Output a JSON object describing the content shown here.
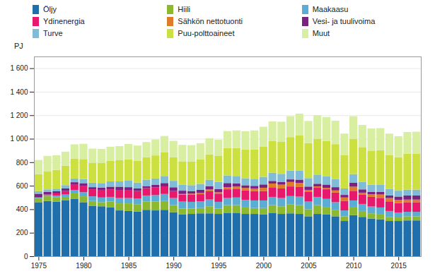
{
  "chart_data": {
    "type": "bar",
    "stacked": true,
    "grid": true,
    "legend": "top",
    "ylabel": "PJ",
    "x": [
      1975,
      1976,
      1977,
      1978,
      1979,
      1980,
      1981,
      1982,
      1983,
      1984,
      1985,
      1986,
      1987,
      1988,
      1989,
      1990,
      1991,
      1992,
      1993,
      1994,
      1995,
      1996,
      1997,
      1998,
      1999,
      2000,
      2001,
      2002,
      2003,
      2004,
      2005,
      2006,
      2007,
      2008,
      2009,
      2010,
      2011,
      2012,
      2013,
      2014,
      2015,
      2016,
      2017
    ],
    "xlim": [
      1974.5,
      2017.5
    ],
    "xticks": [
      1975,
      1980,
      1985,
      1990,
      1995,
      2000,
      2005,
      2010,
      2015
    ],
    "ylim": [
      0,
      1700
    ],
    "yticks": [
      0,
      200,
      400,
      600,
      800,
      {
        "value": 1000,
        "label": "1 000"
      },
      {
        "value": 1200,
        "label": "1 200"
      },
      {
        "value": 1400,
        "label": "1 400"
      },
      {
        "value": 1600,
        "label": "1 600"
      }
    ],
    "series": [
      {
        "name": "Öljy",
        "color": "#1f6fad",
        "values": [
          460,
          470,
          465,
          475,
          490,
          460,
          430,
          425,
          415,
          390,
          385,
          380,
          395,
          390,
          395,
          375,
          355,
          360,
          365,
          365,
          360,
          370,
          370,
          360,
          360,
          355,
          370,
          360,
          365,
          360,
          340,
          360,
          355,
          340,
          300,
          350,
          335,
          320,
          315,
          300,
          300,
          305,
          305
        ]
      },
      {
        "name": "Hiili",
        "color": "#8db92e",
        "values": [
          35,
          40,
          35,
          30,
          45,
          50,
          40,
          35,
          50,
          60,
          65,
          60,
          70,
          75,
          75,
          60,
          50,
          45,
          45,
          60,
          45,
          65,
          65,
          55,
          50,
          55,
          65,
          65,
          75,
          75,
          60,
          75,
          65,
          55,
          40,
          65,
          50,
          45,
          45,
          35,
          30,
          35,
          35
        ]
      },
      {
        "name": "Maakaasu",
        "color": "#5badd4",
        "values": [
          5,
          10,
          15,
          20,
          28,
          35,
          40,
          40,
          40,
          45,
          45,
          50,
          52,
          55,
          60,
          60,
          60,
          58,
          58,
          58,
          58,
          60,
          65,
          65,
          65,
          65,
          70,
          70,
          72,
          72,
          65,
          70,
          68,
          65,
          50,
          60,
          60,
          58,
          55,
          50,
          40,
          38,
          38
        ]
      },
      {
        "name": "Ydinenergia",
        "color": "#e8186d",
        "values": [
          0,
          5,
          20,
          30,
          45,
          55,
          60,
          65,
          65,
          65,
          65,
          65,
          62,
          65,
          65,
          60,
          60,
          60,
          60,
          70,
          70,
          75,
          75,
          80,
          80,
          80,
          82,
          82,
          82,
          82,
          82,
          82,
          82,
          82,
          82,
          82,
          78,
          82,
          82,
          82,
          82,
          82,
          82
        ]
      },
      {
        "name": "Sähkön nettotuonti",
        "color": "#e07b2a",
        "values": [
          0,
          0,
          0,
          0,
          0,
          0,
          0,
          0,
          0,
          0,
          0,
          0,
          0,
          0,
          0,
          0,
          5,
          10,
          10,
          15,
          12,
          18,
          18,
          22,
          22,
          28,
          32,
          32,
          38,
          35,
          18,
          8,
          12,
          18,
          28,
          35,
          18,
          22,
          28,
          28,
          28,
          22,
          22
        ]
      },
      {
        "name": "Vesi- ja tuulivoima",
        "color": "#7b2182",
        "values": [
          32,
          22,
          18,
          22,
          22,
          22,
          18,
          18,
          22,
          32,
          28,
          22,
          18,
          22,
          28,
          32,
          28,
          22,
          28,
          28,
          28,
          35,
          28,
          22,
          22,
          28,
          22,
          22,
          22,
          28,
          28,
          22,
          28,
          28,
          22,
          35,
          28,
          22,
          22,
          22,
          28,
          35,
          35
        ]
      },
      {
        "name": "Turve",
        "color": "#80bcd8",
        "values": [
          22,
          22,
          22,
          28,
          32,
          35,
          38,
          40,
          45,
          45,
          55,
          50,
          55,
          55,
          60,
          55,
          50,
          50,
          50,
          55,
          60,
          65,
          62,
          60,
          60,
          65,
          70,
          70,
          75,
          78,
          72,
          78,
          72,
          68,
          55,
          72,
          65,
          60,
          60,
          55,
          50,
          50,
          50
        ]
      },
      {
        "name": "Puu-polttoaineet",
        "color": "#cce040",
        "values": [
          145,
          155,
          160,
          165,
          170,
          170,
          170,
          170,
          175,
          180,
          182,
          185,
          190,
          196,
          200,
          200,
          200,
          202,
          208,
          215,
          220,
          232,
          238,
          245,
          250,
          258,
          268,
          272,
          285,
          298,
          298,
          305,
          298,
          298,
          285,
          298,
          295,
          290,
          295,
          290,
          285,
          305,
          305
        ]
      },
      {
        "name": "Muut",
        "color": "#d8eea0",
        "values": [
          120,
          130,
          125,
          120,
          120,
          130,
          120,
          120,
          120,
          120,
          130,
          130,
          130,
          135,
          140,
          140,
          140,
          138,
          138,
          138,
          138,
          145,
          150,
          155,
          162,
          168,
          168,
          172,
          178,
          185,
          188,
          200,
          205,
          200,
          182,
          195,
          188,
          188,
          188,
          182,
          178,
          185,
          188
        ]
      }
    ]
  }
}
